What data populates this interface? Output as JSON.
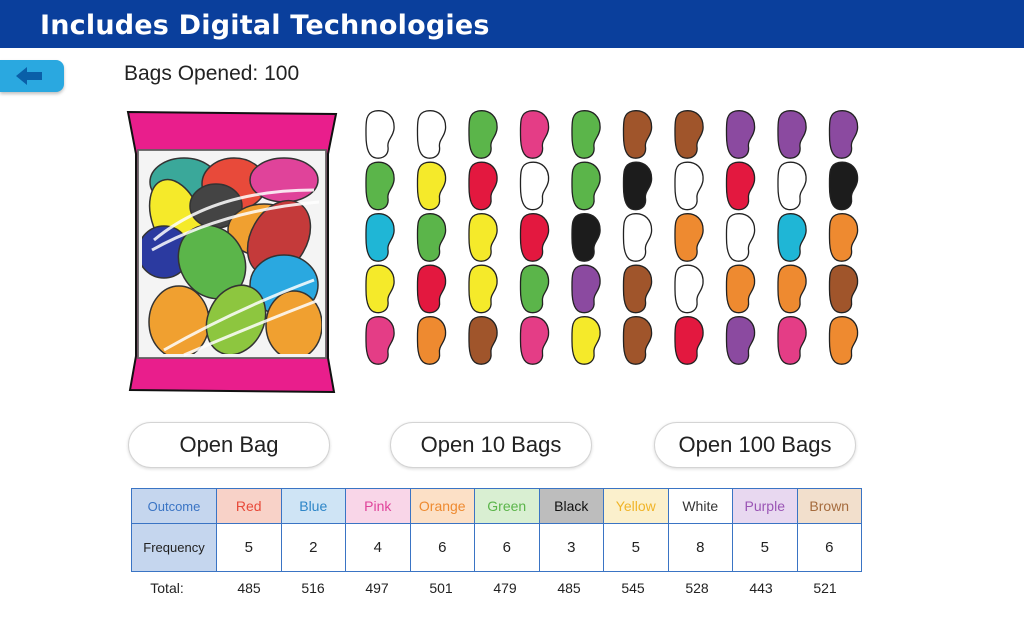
{
  "header": {
    "title": "Includes Digital Technologies"
  },
  "bags_opened_label": "Bags Opened: 100",
  "buttons": {
    "open_one": "Open Bag",
    "open_ten": "Open 10 Bags",
    "open_hundred": "Open 100 Bags"
  },
  "colors": {
    "header": "#0a3f9c",
    "back": "#2aa8e0",
    "table_border": "#3a74c4",
    "white": "#ffffff",
    "green": "#5bb54a",
    "pink": "#e43d86",
    "brown": "#a0552b",
    "purple": "#8b4aa0",
    "yellow": "#f5ea2a",
    "red": "#e3183f",
    "black": "#1c1c1c",
    "blue": "#1fb6d6",
    "orange": "#ee8a30"
  },
  "bean_grid": [
    [
      "white",
      "white",
      "green",
      "pink",
      "green",
      "brown",
      "brown",
      "purple",
      "purple",
      "purple"
    ],
    [
      "green",
      "yellow",
      "red",
      "white",
      "green",
      "black",
      "white",
      "red",
      "white",
      "black"
    ],
    [
      "blue",
      "green",
      "yellow",
      "red",
      "black",
      "white",
      "orange",
      "white",
      "blue",
      "orange"
    ],
    [
      "yellow",
      "red",
      "yellow",
      "green",
      "purple",
      "brown",
      "white",
      "orange",
      "orange",
      "brown"
    ],
    [
      "pink",
      "orange",
      "brown",
      "pink",
      "yellow",
      "brown",
      "red",
      "purple",
      "pink",
      "orange"
    ]
  ],
  "table": {
    "outcome_label": "Outcome",
    "frequency_label": "Frequency",
    "total_label": "Total:",
    "columns": [
      {
        "name": "Red",
        "color": "#e84a3a",
        "bg": "#f8d2c8",
        "frequency": "5",
        "total": "485"
      },
      {
        "name": "Blue",
        "color": "#2e86c8",
        "bg": "#cfe4f5",
        "frequency": "2",
        "total": "516"
      },
      {
        "name": "Pink",
        "color": "#e0439a",
        "bg": "#f9d6e8",
        "frequency": "4",
        "total": "497"
      },
      {
        "name": "Orange",
        "color": "#ee8a30",
        "bg": "#fce0c6",
        "frequency": "6",
        "total": "501"
      },
      {
        "name": "Green",
        "color": "#5bb54a",
        "bg": "#d9efd2",
        "frequency": "6",
        "total": "479"
      },
      {
        "name": "Black",
        "color": "#111111",
        "bg": "#bdbdbd",
        "frequency": "3",
        "total": "485"
      },
      {
        "name": "Yellow",
        "color": "#f0b428",
        "bg": "#fbf0cc",
        "frequency": "5",
        "total": "545"
      },
      {
        "name": "White",
        "color": "#333333",
        "bg": "#ffffff",
        "frequency": "8",
        "total": "528"
      },
      {
        "name": "Purple",
        "color": "#9a55b5",
        "bg": "#e8d8f0",
        "frequency": "5",
        "total": "443"
      },
      {
        "name": "Brown",
        "color": "#a56b3d",
        "bg": "#f2dfcc",
        "frequency": "6",
        "total": "521"
      }
    ]
  }
}
